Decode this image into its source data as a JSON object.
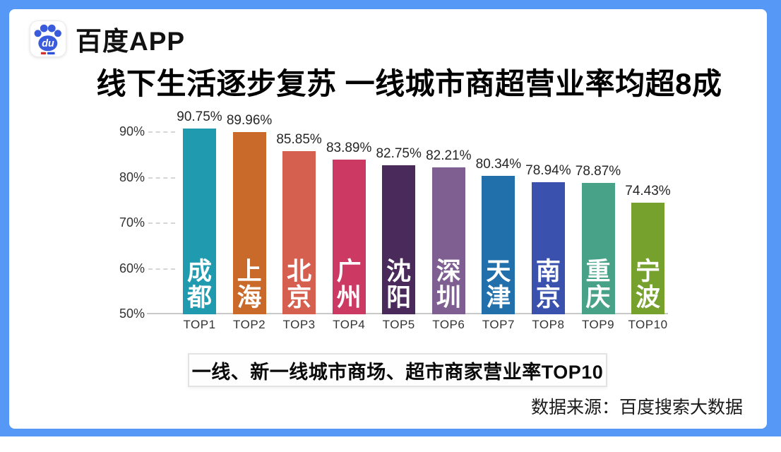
{
  "page": {
    "frame_color": "#5598F6",
    "background_color": "#FFFFFF"
  },
  "header": {
    "app_name": "百度APP",
    "logo_icon": "baidu-paw-icon",
    "logo_du_text": "du",
    "title": "线下生活逐步复苏 一线城市商超营业率均超8成"
  },
  "chart_data": {
    "type": "bar",
    "title": "线下生活逐步复苏 一线城市商超营业率均超8成",
    "subtitle": "一线、新一线城市商场、超市商家营业率TOP10",
    "categories": [
      "TOP1",
      "TOP2",
      "TOP3",
      "TOP4",
      "TOP5",
      "TOP6",
      "TOP7",
      "TOP8",
      "TOP9",
      "TOP10"
    ],
    "series": [
      {
        "name": "商家营业率",
        "cities": [
          "成都",
          "上海",
          "北京",
          "广州",
          "沈阳",
          "深圳",
          "天津",
          "南京",
          "重庆",
          "宁波"
        ],
        "values": [
          90.75,
          89.96,
          85.85,
          83.89,
          82.75,
          82.21,
          80.34,
          78.94,
          78.87,
          74.43
        ],
        "labels": [
          "90.75%",
          "89.96%",
          "85.85%",
          "83.89%",
          "82.75%",
          "82.21%",
          "80.34%",
          "78.94%",
          "78.87%",
          "74.43%"
        ],
        "colors": [
          "#1F9AAF",
          "#C96A2B",
          "#D6604F",
          "#CC3A64",
          "#492A5B",
          "#7F5F91",
          "#2170AB",
          "#3A52AE",
          "#48A287",
          "#77A12D"
        ]
      }
    ],
    "xlabel": "",
    "ylabel": "",
    "ylim": [
      50,
      91.5
    ],
    "y_ticks": [
      {
        "value": 90,
        "label": "90%"
      },
      {
        "value": 80,
        "label": "80%"
      },
      {
        "value": 70,
        "label": "70%"
      },
      {
        "value": 60,
        "label": "60%"
      },
      {
        "value": 50,
        "label": "50%"
      }
    ],
    "grid": "short dashed stubs left of plot; solid baseline at 50%",
    "legend": "none"
  },
  "footer": {
    "caption": "一线、新一线城市商场、超市商家营业率TOP10",
    "source": "数据来源：百度搜索大数据"
  }
}
